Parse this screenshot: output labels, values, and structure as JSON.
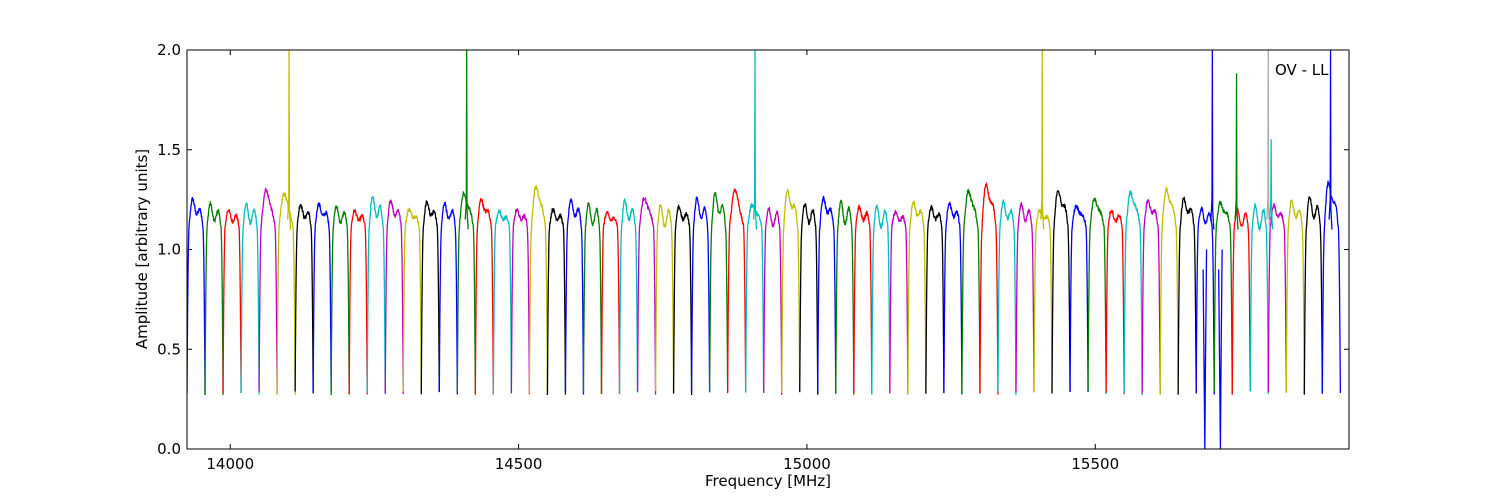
{
  "chart_data": {
    "type": "line",
    "xlabel": "Frequency [MHz]",
    "ylabel": "Amplitude [arbitrary units]",
    "annotation": "OV - LL",
    "xlim": [
      13925,
      15940
    ],
    "ylim": [
      0,
      2.0
    ],
    "xticks": [
      14000,
      14500,
      15000,
      15500
    ],
    "yticks": [
      0.0,
      0.5,
      1.0,
      1.5,
      2.0
    ],
    "grid": false,
    "legend": "none",
    "color_cycle": [
      "#0000ff",
      "#008000",
      "#ff0000",
      "#00bfbf",
      "#bf00bf",
      "#bfbf00",
      "#000000"
    ],
    "channel_width": 31.25,
    "channel_start": 13925,
    "channel_peaks": [
      1.29,
      1.24,
      1.21,
      1.23,
      1.38,
      1.35,
      1.25,
      1.26,
      1.22,
      1.21,
      1.29,
      1.28,
      1.23,
      1.27,
      1.25,
      1.35,
      1.3,
      1.21,
      1.22,
      1.4,
      1.22,
      1.28,
      1.22,
      1.2,
      1.26,
      1.32,
      1.21,
      1.23,
      1.28,
      1.32,
      1.38,
      1.27,
      1.2,
      1.36,
      1.23,
      1.3,
      1.24,
      1.23,
      1.2,
      1.2,
      1.27,
      1.23,
      1.26,
      1.37,
      1.41,
      1.26,
      1.24,
      1.22,
      1.37,
      1.26,
      1.31,
      1.21,
      1.36,
      1.29,
      1.38,
      1.3,
      1.21,
      1.28,
      1.19,
      1.2,
      1.25,
      1.27,
      1.29,
      1.42
    ],
    "spikes": [
      {
        "x": 14102,
        "y": 2.0,
        "color": "#bfbf00"
      },
      {
        "x": 14410,
        "y": 2.0,
        "color": "#008000"
      },
      {
        "x": 14910,
        "y": 2.0,
        "color": "#00bfbf"
      },
      {
        "x": 15408,
        "y": 2.0,
        "color": "#bfbf00"
      },
      {
        "x": 15703,
        "y": 2.0,
        "color": "#0000ff"
      },
      {
        "x": 15745,
        "y": 1.88,
        "color": "#008000"
      },
      {
        "x": 15800,
        "y": 2.0,
        "color": "#aaaaaa"
      },
      {
        "x": 15805,
        "y": 1.55,
        "color": "#00bfbf"
      },
      {
        "x": 15908,
        "y": 2.0,
        "color": "#0000ff"
      }
    ],
    "dropouts": [
      {
        "x": 15690,
        "y": 0.0,
        "color": "#0000ff"
      },
      {
        "x": 15717,
        "y": 0.0,
        "color": "#0000ff"
      }
    ]
  }
}
